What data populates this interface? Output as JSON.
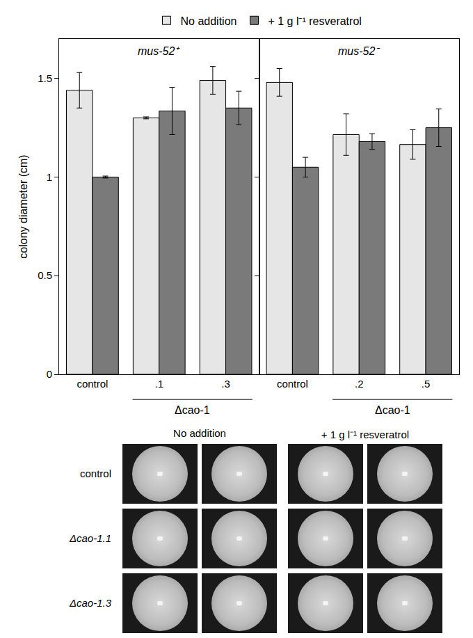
{
  "chart_data": [
    {
      "type": "bar",
      "title": "mus-52⁺",
      "y_label": "colony diameter (cm)",
      "categories": [
        "control",
        ".1",
        ".3"
      ],
      "x_group": {
        "text": "Δcao-1",
        "from": ".1",
        "to": ".3"
      },
      "series": [
        {
          "name": "No addition",
          "color": "#e6e6e6",
          "values": [
            1.44,
            1.3,
            1.49
          ],
          "errors": [
            0.09,
            0.005,
            0.07
          ]
        },
        {
          "name": "+ 1 g l⁻¹ resveratrol",
          "color": "#7a7a7a",
          "values": [
            1.0,
            1.335,
            1.35
          ],
          "errors": [
            0.005,
            0.12,
            0.085
          ]
        }
      ],
      "ylim": [
        0,
        1.7
      ],
      "yticks": [
        0,
        0.5,
        1,
        1.5
      ],
      "legend": "top"
    },
    {
      "type": "bar",
      "title": "mus-52⁻",
      "categories": [
        "control",
        ".2",
        ".5"
      ],
      "x_group": {
        "text": "Δcao-1",
        "from": ".2",
        "to": ".5"
      },
      "series": [
        {
          "name": "No addition",
          "color": "#e6e6e6",
          "values": [
            1.48,
            1.215,
            1.165
          ],
          "errors": [
            0.07,
            0.105,
            0.075
          ]
        },
        {
          "name": "+ 1 g l⁻¹ resveratrol",
          "color": "#7a7a7a",
          "values": [
            1.05,
            1.18,
            1.25
          ],
          "errors": [
            0.05,
            0.04,
            0.095
          ]
        }
      ],
      "ylim": [
        0,
        1.7
      ],
      "yticks": [
        0,
        0.5,
        1,
        1.5
      ],
      "tick_labels": "x"
    }
  ],
  "photo_panel": {
    "columns": [
      "No addition",
      "+ 1 g l⁻¹ resveratrol"
    ],
    "rows": [
      "control",
      "Δcao-1.1",
      "Δcao-1.3"
    ]
  }
}
